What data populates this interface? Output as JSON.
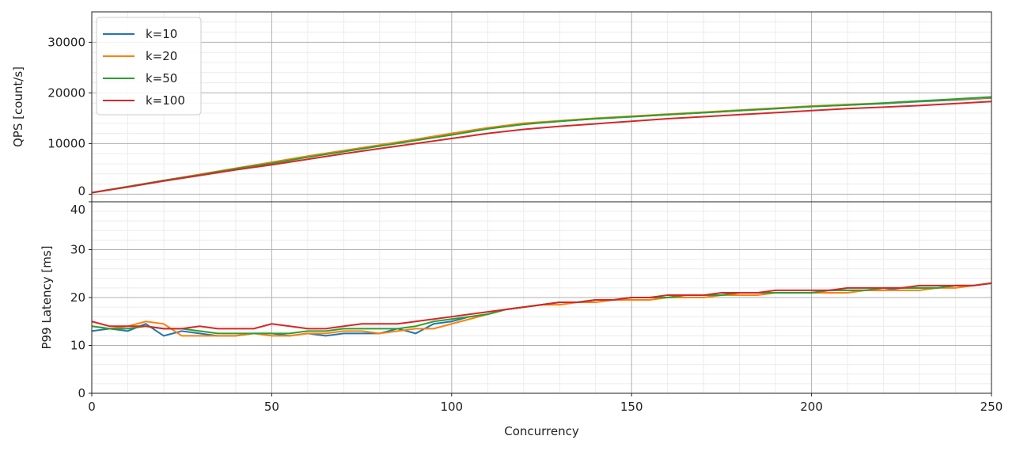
{
  "chart_data": [
    {
      "type": "line",
      "title": "",
      "xlabel": "",
      "ylabel": "QPS [count/s]",
      "xlim": [
        0,
        250
      ],
      "ylim": [
        -1500,
        36000
      ],
      "yticks": [
        0,
        10000,
        20000,
        30000
      ],
      "grid": true,
      "legend": "top-left",
      "x": [
        0,
        10,
        20,
        30,
        40,
        50,
        60,
        70,
        80,
        90,
        100,
        110,
        120,
        130,
        140,
        150,
        160,
        170,
        180,
        190,
        200,
        210,
        220,
        230,
        240,
        250
      ],
      "series": [
        {
          "name": "k=10",
          "color": "#1f77b4",
          "values": [
            300,
            1500,
            2700,
            3900,
            5100,
            6300,
            7500,
            8600,
            9700,
            10800,
            12000,
            13100,
            13900,
            14400,
            14900,
            15300,
            15700,
            16100,
            16500,
            16900,
            17300,
            17600,
            17900,
            18300,
            18600,
            19000
          ]
        },
        {
          "name": "k=20",
          "color": "#ff7f0e",
          "values": [
            300,
            1500,
            2700,
            3900,
            5100,
            6300,
            7500,
            8600,
            9700,
            10800,
            12000,
            13100,
            14000,
            14500,
            15000,
            15400,
            15800,
            16200,
            16600,
            17000,
            17400,
            17700,
            18000,
            18400,
            18700,
            19100
          ]
        },
        {
          "name": "k=50",
          "color": "#2ca02c",
          "values": [
            300,
            1500,
            2700,
            3800,
            5000,
            6100,
            7300,
            8400,
            9500,
            10600,
            11700,
            12900,
            13800,
            14400,
            14900,
            15300,
            15700,
            16100,
            16500,
            16900,
            17300,
            17600,
            18000,
            18400,
            18800,
            19200
          ]
        },
        {
          "name": "k=100",
          "color": "#d62728",
          "values": [
            300,
            1400,
            2600,
            3700,
            4800,
            5800,
            6900,
            8000,
            9000,
            10000,
            11000,
            12000,
            12800,
            13400,
            13900,
            14400,
            14900,
            15300,
            15700,
            16100,
            16500,
            16900,
            17200,
            17500,
            17900,
            18300
          ]
        }
      ]
    },
    {
      "type": "line",
      "title": "",
      "xlabel": "Concurrency",
      "ylabel": "P99 Latency [ms]",
      "xlim": [
        0,
        250
      ],
      "ylim": [
        0,
        40
      ],
      "yticks": [
        0,
        10,
        20,
        30,
        40
      ],
      "xticks": [
        0,
        50,
        100,
        150,
        200,
        250
      ],
      "grid": true,
      "x": [
        0,
        5,
        10,
        15,
        20,
        25,
        30,
        35,
        40,
        45,
        50,
        55,
        60,
        65,
        70,
        75,
        80,
        85,
        90,
        95,
        100,
        105,
        110,
        115,
        120,
        125,
        130,
        135,
        140,
        145,
        150,
        155,
        160,
        165,
        170,
        175,
        180,
        185,
        190,
        195,
        200,
        205,
        210,
        215,
        220,
        225,
        230,
        235,
        240,
        245,
        250
      ],
      "series": [
        {
          "name": "k=10",
          "color": "#1f77b4",
          "values": [
            13,
            13.5,
            13,
            14.5,
            12,
            13,
            12.5,
            12,
            12,
            12.5,
            12.5,
            12,
            12.5,
            12,
            12.5,
            12.5,
            12.5,
            13.5,
            12.5,
            14.5,
            15,
            16,
            16.5,
            17.5,
            18,
            18.5,
            19,
            19,
            19.5,
            19.5,
            20,
            20,
            20,
            20.5,
            20.5,
            20.5,
            21,
            21,
            21,
            21,
            21,
            21.5,
            21.5,
            21.5,
            21.5,
            22,
            22,
            22,
            22.5,
            22.5,
            23
          ]
        },
        {
          "name": "k=20",
          "color": "#ff7f0e",
          "values": [
            14,
            13.5,
            14,
            15,
            14.5,
            12,
            12,
            12,
            12,
            12.5,
            12,
            12,
            12.5,
            12.5,
            13,
            13,
            12.5,
            13,
            13.5,
            13.5,
            14.5,
            15.5,
            16.5,
            17.5,
            18,
            18.5,
            18.5,
            19,
            19,
            19.5,
            19.5,
            19.5,
            20,
            20,
            20,
            20.5,
            20.5,
            20.5,
            21,
            21,
            21,
            21,
            21,
            21.5,
            21.5,
            21.5,
            21.5,
            22,
            22,
            22.5,
            23
          ]
        },
        {
          "name": "k=50",
          "color": "#2ca02c",
          "values": [
            14,
            13.5,
            13.5,
            14,
            13.5,
            13.5,
            13,
            12.5,
            12.5,
            12.5,
            12.5,
            12.5,
            13,
            13,
            13.5,
            13.5,
            13.5,
            13.5,
            14,
            15,
            15.5,
            16,
            16.5,
            17.5,
            18,
            18.5,
            19,
            19,
            19.5,
            19.5,
            20,
            20,
            20,
            20.5,
            20.5,
            20.5,
            21,
            21,
            21,
            21,
            21,
            21.5,
            21.5,
            21.5,
            22,
            22,
            22,
            22,
            22.5,
            22.5,
            23
          ]
        },
        {
          "name": "k=100",
          "color": "#d62728",
          "values": [
            15,
            14,
            14,
            14,
            13.5,
            13.5,
            14,
            13.5,
            13.5,
            13.5,
            14.5,
            14,
            13.5,
            13.5,
            14,
            14.5,
            14.5,
            14.5,
            15,
            15.5,
            16,
            16.5,
            17,
            17.5,
            18,
            18.5,
            19,
            19,
            19.5,
            19.5,
            20,
            20,
            20.5,
            20.5,
            20.5,
            21,
            21,
            21,
            21.5,
            21.5,
            21.5,
            21.5,
            22,
            22,
            22,
            22,
            22.5,
            22.5,
            22.5,
            22.5,
            23
          ]
        }
      ]
    }
  ]
}
